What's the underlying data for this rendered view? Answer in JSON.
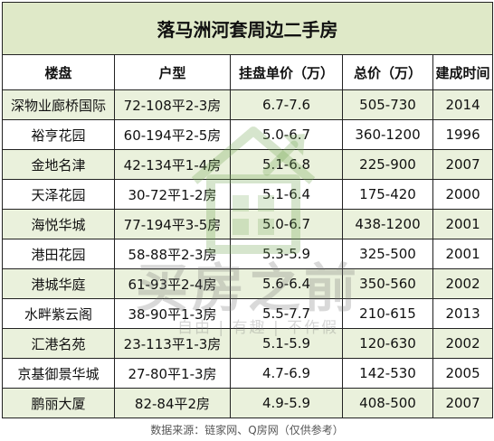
{
  "title": "落马洲河套周边二手房",
  "columns": [
    "楼盘",
    "户型",
    "挂盘单价（万）",
    "总价（万）",
    "建成时间"
  ],
  "rows": [
    [
      "深物业廊桥国际",
      "72-108平2-3房",
      "6.7-7.6",
      "505-730",
      "2014"
    ],
    [
      "裕亨花园",
      "60-194平2-5房",
      "5.0-6.7",
      "360-1200",
      "1996"
    ],
    [
      "金地名津",
      "42-134平1-4房",
      "5.1-6.8",
      "225-900",
      "2007"
    ],
    [
      "天泽花园",
      "30-72平1-2房",
      "5.1-6.4",
      "175-420",
      "2000"
    ],
    [
      "海悦华城",
      "77-194平3-5房",
      "5.0-6.7",
      "438-1200",
      "2001"
    ],
    [
      "港田花园",
      "58-88平2-3房",
      "5.3-5.9",
      "325-500",
      "2001"
    ],
    [
      "港城华庭",
      "61-93平2-4房",
      "5.6-6.4",
      "350-560",
      "2002"
    ],
    [
      "水畔紫云阁",
      "38-90平1-3房",
      "5.5-7.7",
      "210-615",
      "2013"
    ],
    [
      "汇港名苑",
      "23-113平1-3房",
      "5.1-5.9",
      "120-630",
      "2002"
    ],
    [
      "京基御景华城",
      "27-80平1-3房",
      "4.7-6.9",
      "142-530",
      "2005"
    ],
    [
      "鹏丽大厦",
      "82-84平2房",
      "4.9-5.9",
      "408-500",
      "2007"
    ]
  ],
  "footer": "数据来源：链家网、Q房网（仅供参考）",
  "watermark": {
    "main": "买房之前",
    "sub": "自由 | 有趣 | 不作假",
    "icon": "house-arrow-logo"
  },
  "colors": {
    "title_bg": "#dfe9c8",
    "alt_row_bg": "#eaf1dc",
    "border": "#222222"
  }
}
